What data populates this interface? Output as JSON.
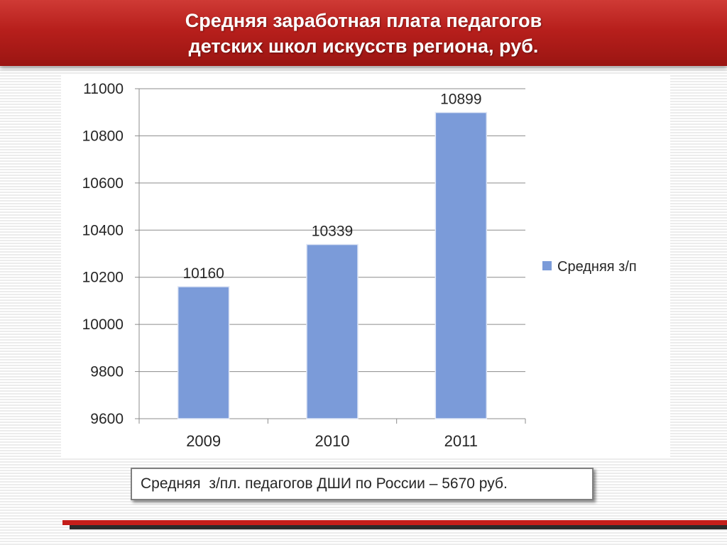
{
  "title": {
    "line1": "Средняя заработная плата педагогов",
    "line2": "детских школ искусств региона,  руб."
  },
  "note": "Средняя  з/пл. педагогов ДШИ по России – 5670 руб.",
  "colors": {
    "title_bar": "#b71f1c",
    "bar": "#7b9bd9",
    "accent_line": "#c41e1a"
  },
  "chart_data": {
    "type": "bar",
    "categories": [
      "2009",
      "2010",
      "2011"
    ],
    "series": [
      {
        "name": "Средняя з/п",
        "values": [
          10160,
          10339,
          10899
        ]
      }
    ],
    "data_labels": [
      "10160",
      "10339",
      "10899"
    ],
    "y_ticks": [
      9600,
      9800,
      10000,
      10200,
      10400,
      10600,
      10800,
      11000
    ],
    "ylim": [
      9600,
      11000
    ],
    "grid": true,
    "legend": "right",
    "title": "",
    "xlabel": "",
    "ylabel": ""
  }
}
